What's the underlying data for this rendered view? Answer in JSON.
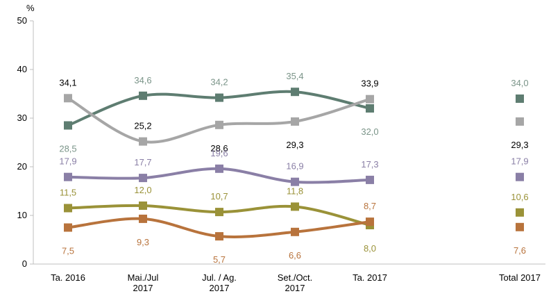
{
  "chart_data": {
    "type": "line",
    "title": "",
    "ylabel": "%",
    "xlabel": "",
    "ylim": [
      0,
      50
    ],
    "yticks": [
      0,
      10,
      20,
      30,
      40,
      50
    ],
    "grid": false,
    "legend": "none",
    "categories": [
      [
        "Ta. 2016"
      ],
      [
        "Mai./Jul",
        "2017"
      ],
      [
        "Jul. / Ag.",
        "2017"
      ],
      [
        "Set./Oct.",
        "2017"
      ],
      [
        "Ta. 2017"
      ],
      [
        "Total 2017"
      ]
    ],
    "connected_points": 5,
    "series": [
      {
        "color": "#5e7d71",
        "label_color": "#7a9488",
        "values": [
          28.5,
          34.6,
          34.2,
          35.4,
          32.0,
          34.0
        ],
        "labels": [
          "28,5",
          "34,6",
          "34,2",
          "35,4",
          "32,0",
          "34,0"
        ]
      },
      {
        "color": "#a6a6a6",
        "label_color": "#000000",
        "values": [
          34.1,
          25.2,
          28.6,
          29.3,
          33.9,
          29.3
        ],
        "labels": [
          "34,1",
          "25,2",
          "28,6",
          "29,3",
          "33,9",
          "29,3"
        ]
      },
      {
        "color": "#8a7fa6",
        "label_color": "#8a7fa6",
        "values": [
          17.9,
          17.7,
          19.6,
          16.9,
          17.3,
          17.9
        ],
        "labels": [
          "17,9",
          "17,7",
          "19,6",
          "16,9",
          "17,3",
          "17,9"
        ]
      },
      {
        "color": "#9a9238",
        "label_color": "#9a9238",
        "values": [
          11.5,
          12.0,
          10.7,
          11.8,
          8.0,
          10.6
        ],
        "labels": [
          "11,5",
          "12,0",
          "10,7",
          "11,8",
          "8,0",
          "10,6"
        ]
      },
      {
        "color": "#b8733c",
        "label_color": "#b8733c",
        "values": [
          7.5,
          9.3,
          5.7,
          6.6,
          8.7,
          7.6
        ],
        "labels": [
          "7,5",
          "9,3",
          "5,7",
          "6,6",
          "8,7",
          "7,6"
        ]
      }
    ]
  }
}
